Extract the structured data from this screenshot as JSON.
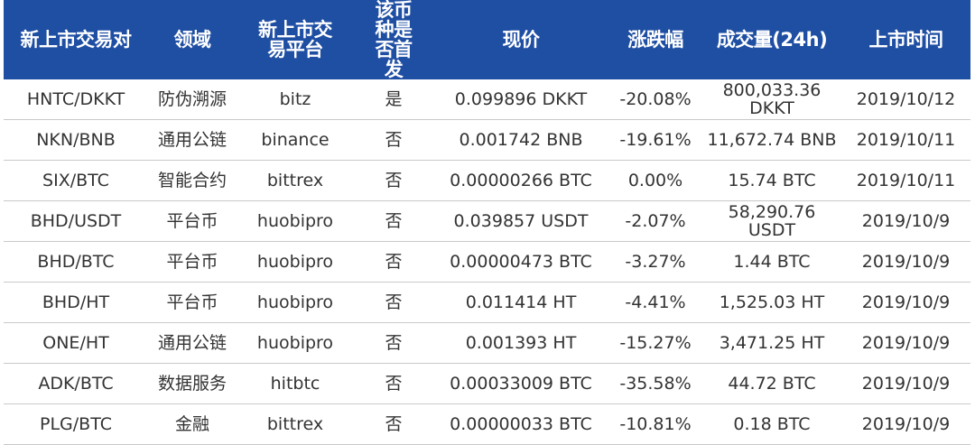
{
  "table": {
    "columns": [
      "新上市交易对",
      "领域",
      "新上市交易平台",
      "该币种是否首发",
      "现价",
      "涨跌幅",
      "成交量(24h)",
      "上市时间"
    ],
    "rows": [
      [
        "HNTC/DKKT",
        "防伪溯源",
        "bitz",
        "是",
        "0.099896 DKKT",
        "-20.08%",
        "800,033.36 DKKT",
        "2019/10/12"
      ],
      [
        "NKN/BNB",
        "通用公链",
        "binance",
        "否",
        "0.001742 BNB",
        "-19.61%",
        "11,672.74 BNB",
        "2019/10/11"
      ],
      [
        "SIX/BTC",
        "智能合约",
        "bittrex",
        "否",
        "0.00000266 BTC",
        "0.00%",
        "15.74 BTC",
        "2019/10/11"
      ],
      [
        "BHD/USDT",
        "平台币",
        "huobipro",
        "否",
        "0.039857 USDT",
        "-2.07%",
        "58,290.76 USDT",
        "2019/10/9"
      ],
      [
        "BHD/BTC",
        "平台币",
        "huobipro",
        "否",
        "0.00000473 BTC",
        "-3.27%",
        "1.44 BTC",
        "2019/10/9"
      ],
      [
        "BHD/HT",
        "平台币",
        "huobipro",
        "否",
        "0.011414 HT",
        "-4.41%",
        "1,525.03 HT",
        "2019/10/9"
      ],
      [
        "ONE/HT",
        "通用公链",
        "huobipro",
        "否",
        "0.001393 HT",
        "-15.27%",
        "3,471.25 HT",
        "2019/10/9"
      ],
      [
        "ADK/BTC",
        "数据服务",
        "hitbtc",
        "否",
        "0.00033009 BTC",
        "-35.58%",
        "44.72 BTC",
        "2019/10/9"
      ],
      [
        "PLG/BTC",
        "金融",
        "bittrex",
        "否",
        "0.00000033 BTC",
        "-10.81%",
        "0.18 BTC",
        "2019/10/9"
      ]
    ]
  }
}
